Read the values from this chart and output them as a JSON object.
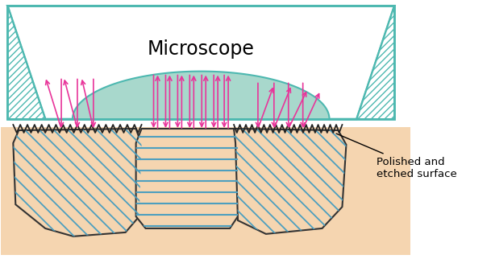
{
  "bg_color": "#ffffff",
  "teal": "#4db8b0",
  "lens_color": "#a8d8cc",
  "arrow_color": "#e8359a",
  "grain_fill": "#f5d5b0",
  "grain_edge": "#333333",
  "hatch_color": "#4d9fbf",
  "annotation_text": "Polished and\netched surface",
  "microscope_label": "Microscope"
}
